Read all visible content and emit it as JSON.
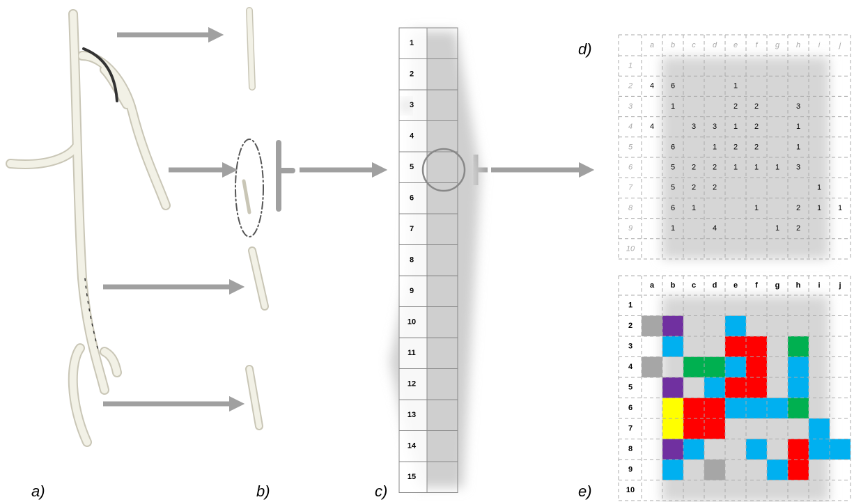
{
  "panel_labels": [
    "a)",
    "b)",
    "c)",
    "d)",
    "e)"
  ],
  "strip": {
    "rows": [
      "1",
      "2",
      "3",
      "4",
      "5",
      "6",
      "7",
      "8",
      "9",
      "10",
      "11",
      "12",
      "13",
      "14",
      "15"
    ]
  },
  "grid": {
    "columns": [
      "a",
      "b",
      "c",
      "d",
      "e",
      "f",
      "g",
      "h",
      "i",
      "j"
    ],
    "rows": [
      "1",
      "2",
      "3",
      "4",
      "5",
      "6",
      "7",
      "8",
      "9",
      "10"
    ],
    "cells": [
      [
        null,
        null,
        null,
        null,
        null,
        null,
        null,
        null,
        null,
        null
      ],
      [
        "4",
        "6",
        null,
        null,
        "1",
        null,
        null,
        null,
        null,
        null
      ],
      [
        null,
        "1",
        null,
        null,
        "2",
        "2",
        null,
        "3",
        null,
        null
      ],
      [
        "4",
        null,
        "3",
        "3",
        "1",
        "2",
        null,
        "1",
        null,
        null
      ],
      [
        null,
        "6",
        null,
        "1",
        "2",
        "2",
        null,
        "1",
        null,
        null
      ],
      [
        null,
        "5",
        "2",
        "2",
        "1",
        "1",
        "1",
        "3",
        null,
        null
      ],
      [
        null,
        "5",
        "2",
        "2",
        null,
        null,
        null,
        null,
        "1",
        null
      ],
      [
        null,
        "6",
        "1",
        null,
        null,
        "1",
        null,
        "2",
        "1",
        "1"
      ],
      [
        null,
        "1",
        null,
        "4",
        null,
        null,
        "1",
        "2",
        null,
        null
      ],
      [
        null,
        null,
        null,
        null,
        null,
        null,
        null,
        null,
        null,
        null
      ]
    ],
    "cell_colors": {
      "1": "#00b0f0",
      "2": "#ff0000",
      "3": "#00b050",
      "4": "#a6a6a6",
      "5": "#ffff00",
      "6": "#7030a0"
    }
  }
}
